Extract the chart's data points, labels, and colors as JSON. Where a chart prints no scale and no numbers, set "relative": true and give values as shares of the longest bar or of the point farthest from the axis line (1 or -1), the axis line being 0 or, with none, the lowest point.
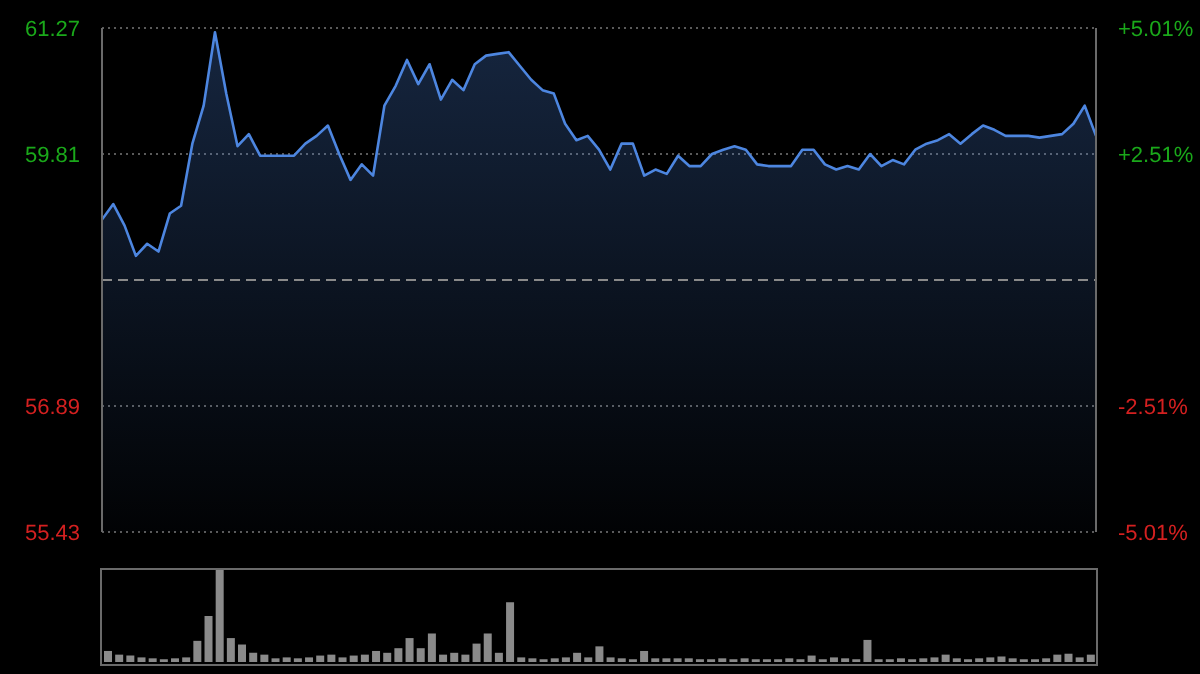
{
  "chart_data": [
    {
      "type": "area",
      "categories": [
        null,
        null,
        null,
        null,
        null,
        null,
        null,
        null,
        null,
        null,
        null,
        null,
        null,
        null,
        null,
        null,
        null,
        null,
        null,
        null,
        null,
        null,
        null,
        null,
        null,
        null,
        null,
        null,
        null,
        null,
        null,
        null,
        null,
        null,
        null,
        null,
        null,
        null,
        null,
        null,
        null,
        null,
        null,
        null,
        null,
        null,
        null,
        null,
        null,
        null,
        null,
        null,
        null,
        null,
        null,
        null,
        null,
        null,
        null,
        null,
        null,
        null,
        null,
        null,
        null,
        null,
        null,
        null,
        null,
        null,
        null,
        null,
        null,
        null,
        null,
        null,
        null,
        null,
        null,
        null,
        null,
        null,
        null,
        null,
        null,
        null,
        null,
        null,
        null
      ],
      "series": [
        {
          "color": "#4d86e0",
          "values": [
            59.05,
            59.23,
            58.98,
            58.63,
            58.77,
            58.68,
            59.12,
            59.21,
            59.93,
            60.37,
            61.22,
            60.51,
            59.9,
            60.04,
            59.79,
            59.79,
            59.79,
            59.79,
            59.93,
            60.02,
            60.14,
            59.81,
            59.51,
            59.69,
            59.56,
            60.37,
            60.6,
            60.9,
            60.62,
            60.85,
            60.44,
            60.67,
            60.55,
            60.85,
            60.95,
            60.97,
            60.99,
            60.83,
            60.67,
            60.55,
            60.51,
            60.16,
            59.97,
            60.02,
            59.86,
            59.63,
            59.93,
            59.93,
            59.56,
            59.63,
            59.58,
            59.79,
            59.67,
            59.67,
            59.81,
            59.86,
            59.9,
            59.86,
            59.69,
            59.67,
            59.67,
            59.67,
            59.86,
            59.86,
            59.69,
            59.63,
            59.67,
            59.63,
            59.81,
            59.67,
            59.74,
            59.69,
            59.86,
            59.93,
            59.97,
            60.04,
            59.93,
            60.04,
            60.14,
            60.09,
            60.02,
            60.02,
            60.02,
            60.0,
            60.02,
            60.04,
            60.16,
            60.37,
            60.02
          ]
        }
      ],
      "ylim": [
        55.43,
        61.27
      ],
      "yticks": [
        55.43,
        56.89,
        59.81,
        61.27
      ],
      "y2lim": [
        -5.01,
        5.01
      ],
      "y2ticks": [
        {
          "value": -5.01,
          "label": "-5.01%"
        },
        {
          "value": -2.51,
          "label": "-2.51%"
        },
        {
          "value": 2.51,
          "label": "+2.51%"
        },
        {
          "value": 5.01,
          "label": "+5.01%"
        }
      ],
      "ref_lines": [
        {
          "axis": "y",
          "value": 58.35,
          "color": "#8a8a8a",
          "line_style": "dashed"
        }
      ],
      "grid": true,
      "marker": "none",
      "tick_labels": "y"
    },
    {
      "type": "bar",
      "relative": true,
      "categories": [
        null,
        null,
        null,
        null,
        null,
        null,
        null,
        null,
        null,
        null,
        null,
        null,
        null,
        null,
        null,
        null,
        null,
        null,
        null,
        null,
        null,
        null,
        null,
        null,
        null,
        null,
        null,
        null,
        null,
        null,
        null,
        null,
        null,
        null,
        null,
        null,
        null,
        null,
        null,
        null,
        null,
        null,
        null,
        null,
        null,
        null,
        null,
        null,
        null,
        null,
        null,
        null,
        null,
        null,
        null,
        null,
        null,
        null,
        null,
        null,
        null,
        null,
        null,
        null,
        null,
        null,
        null,
        null,
        null,
        null,
        null,
        null,
        null,
        null,
        null,
        null,
        null,
        null,
        null,
        null,
        null,
        null,
        null,
        null,
        null,
        null,
        null,
        null,
        null
      ],
      "values": [
        0.12,
        0.08,
        0.07,
        0.05,
        0.04,
        0.03,
        0.04,
        0.05,
        0.23,
        0.5,
        1,
        0.26,
        0.19,
        0.1,
        0.08,
        0.04,
        0.05,
        0.04,
        0.05,
        0.07,
        0.08,
        0.05,
        0.07,
        0.08,
        0.12,
        0.1,
        0.15,
        0.26,
        0.15,
        0.31,
        0.08,
        0.1,
        0.08,
        0.2,
        0.31,
        0.1,
        0.65,
        0.05,
        0.04,
        0.03,
        0.04,
        0.05,
        0.1,
        0.05,
        0.17,
        0.05,
        0.04,
        0.03,
        0.12,
        0.04,
        0.04,
        0.04,
        0.04,
        0.03,
        0.03,
        0.04,
        0.03,
        0.04,
        0.03,
        0.03,
        0.03,
        0.04,
        0.03,
        0.07,
        0.03,
        0.05,
        0.04,
        0.03,
        0.24,
        0.03,
        0.03,
        0.04,
        0.03,
        0.04,
        0.05,
        0.08,
        0.04,
        0.03,
        0.04,
        0.05,
        0.06,
        0.04,
        0.03,
        0.03,
        0.04,
        0.08,
        0.09,
        0.05,
        0.08
      ],
      "color": "#8a8a8a",
      "tick_labels": false
    }
  ]
}
